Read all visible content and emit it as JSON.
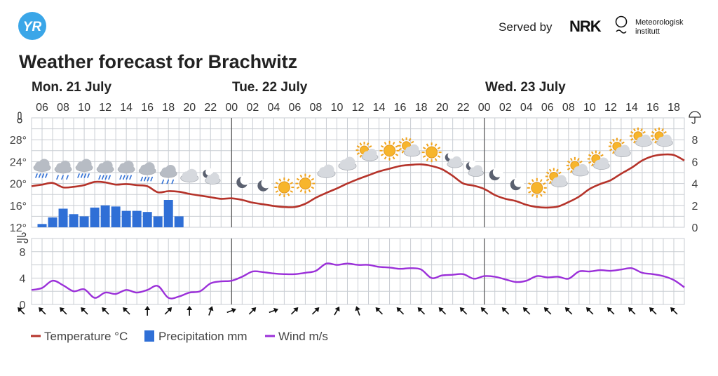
{
  "header": {
    "logo_text": "YR",
    "served_by": "Served by",
    "nrk_logo": "NRK",
    "met_line1": "Meteorologisk",
    "met_line2": "institutt"
  },
  "title": "Weather forecast for Brachwitz",
  "days": [
    "Mon. 21 July",
    "Tue. 22 July",
    "Wed. 23 July"
  ],
  "legend": {
    "temperature": "Temperature °C",
    "precipitation": "Precipitation mm",
    "wind": "Wind m/s"
  },
  "colors": {
    "temperature": "#b5332a",
    "precipitation": "#2f6fd6",
    "wind": "#9b30d9",
    "grid": "#c9cdd3",
    "brand": "#3aa6e8"
  },
  "chart_data": [
    {
      "type": "line",
      "title": "",
      "x_hours": [
        5,
        6,
        7,
        8,
        9,
        10,
        11,
        12,
        13,
        14,
        15,
        16,
        17,
        18,
        19,
        20,
        21,
        22,
        23,
        24,
        25,
        26,
        27,
        28,
        29,
        30,
        31,
        32,
        33,
        34,
        35,
        36,
        37,
        38,
        39,
        40,
        41,
        42,
        43,
        44,
        45,
        46,
        47,
        48,
        49,
        50,
        51,
        52,
        53,
        54,
        55,
        56,
        57,
        58,
        59,
        60,
        61,
        62,
        63,
        64,
        65,
        66,
        67
      ],
      "x_tick_labels": [
        "06",
        "08",
        "10",
        "12",
        "14",
        "16",
        "18",
        "20",
        "22",
        "00",
        "02",
        "04",
        "06",
        "08",
        "10",
        "12",
        "14",
        "16",
        "18",
        "20",
        "22",
        "00",
        "02",
        "04",
        "06",
        "08",
        "10",
        "12",
        "14",
        "16",
        "18"
      ],
      "series": [
        {
          "name": "Temperature °C",
          "values": [
            19.5,
            19.8,
            20.1,
            19.3,
            19.4,
            19.7,
            20.3,
            20.2,
            19.8,
            19.9,
            19.7,
            19.5,
            18.4,
            18.6,
            18.5,
            18.1,
            17.8,
            17.5,
            17.2,
            17.3,
            17.0,
            16.5,
            16.2,
            15.9,
            15.7,
            15.7,
            16.3,
            17.4,
            18.3,
            19.1,
            20.0,
            20.8,
            21.5,
            22.2,
            22.7,
            23.2,
            23.4,
            23.5,
            23.2,
            22.6,
            21.4,
            20.0,
            19.6,
            19.0,
            17.9,
            17.2,
            16.8,
            16.1,
            15.7,
            15.6,
            15.8,
            16.6,
            17.6,
            19.0,
            19.9,
            20.6,
            21.8,
            22.9,
            24.2,
            25.0,
            25.3,
            25.2,
            24.2
          ]
        }
      ],
      "y_left_label": "°C",
      "ylim": [
        12,
        32
      ],
      "y_ticks": [
        12,
        16,
        20,
        24,
        28
      ]
    },
    {
      "type": "bar",
      "x_hours": [
        6,
        7,
        8,
        9,
        10,
        11,
        12,
        13,
        14,
        15,
        16,
        17,
        18,
        19
      ],
      "series": [
        {
          "name": "Precipitation mm",
          "values": [
            0.3,
            0.9,
            1.7,
            1.2,
            1.0,
            1.8,
            2.0,
            1.9,
            1.5,
            1.5,
            1.4,
            1.0,
            2.5,
            1.0
          ]
        }
      ],
      "y_right_ticks": [
        0,
        2,
        4,
        6,
        8
      ],
      "ylim": [
        0,
        10
      ]
    },
    {
      "type": "line",
      "x_hours": [
        5,
        6,
        7,
        8,
        9,
        10,
        11,
        12,
        13,
        14,
        15,
        16,
        17,
        18,
        19,
        20,
        21,
        22,
        23,
        24,
        25,
        26,
        27,
        28,
        29,
        30,
        31,
        32,
        33,
        34,
        35,
        36,
        37,
        38,
        39,
        40,
        41,
        42,
        43,
        44,
        45,
        46,
        47,
        48,
        49,
        50,
        51,
        52,
        53,
        54,
        55,
        56,
        57,
        58,
        59,
        60,
        61,
        62,
        63,
        64,
        65,
        66,
        67
      ],
      "series": [
        {
          "name": "Wind m/s",
          "values": [
            2.2,
            2.5,
            3.6,
            2.9,
            2.0,
            2.3,
            1.0,
            1.8,
            1.6,
            2.2,
            1.8,
            2.2,
            2.8,
            1.0,
            1.2,
            1.8,
            2.0,
            3.2,
            3.5,
            3.6,
            4.2,
            5.0,
            4.9,
            4.7,
            4.6,
            4.6,
            4.8,
            5.1,
            6.2,
            6.0,
            6.2,
            6.0,
            6.0,
            5.7,
            5.6,
            5.4,
            5.5,
            5.3,
            4.0,
            4.4,
            4.5,
            4.6,
            3.9,
            4.3,
            4.2,
            3.8,
            3.4,
            3.6,
            4.3,
            4.1,
            4.2,
            3.9,
            5.0,
            5.0,
            5.2,
            5.1,
            5.3,
            5.5,
            4.8,
            4.6,
            4.3,
            3.7,
            2.6
          ]
        }
      ],
      "ylim": [
        0,
        10
      ],
      "y_ticks": [
        0,
        4,
        8
      ]
    }
  ],
  "left_numbers": [
    "28°",
    "24°",
    "20°",
    "16°",
    "12°"
  ],
  "right_numbers": [
    "8",
    "6",
    "4",
    "2",
    "0"
  ],
  "wind_numbers": [
    "8",
    "4",
    "0"
  ],
  "icons": [
    {
      "hour": 6,
      "temp": 22.9,
      "type": "heavy-rain-icon"
    },
    {
      "hour": 8,
      "temp": 22.6,
      "type": "rain-icon"
    },
    {
      "hour": 10,
      "temp": 22.9,
      "type": "heavy-rain-icon"
    },
    {
      "hour": 12,
      "temp": 22.6,
      "type": "heavy-rain-icon"
    },
    {
      "hour": 14,
      "temp": 22.6,
      "type": "heavy-rain-icon"
    },
    {
      "hour": 16,
      "temp": 22.3,
      "type": "heavy-rain-icon"
    },
    {
      "hour": 18,
      "temp": 21.8,
      "type": "rain-icon"
    },
    {
      "hour": 20,
      "temp": 21.4,
      "type": "cloud-icon"
    },
    {
      "hour": 22,
      "temp": 21.0,
      "type": "partly-cloudy-night-icon"
    },
    {
      "hour": 25,
      "temp": 20.2,
      "type": "moon-icon"
    },
    {
      "hour": 27,
      "temp": 19.6,
      "type": "moon-icon"
    },
    {
      "hour": 29,
      "temp": 19.3,
      "type": "sun-icon"
    },
    {
      "hour": 31,
      "temp": 20.0,
      "type": "sun-icon"
    },
    {
      "hour": 33,
      "temp": 22.2,
      "type": "cloud-icon"
    },
    {
      "hour": 35,
      "temp": 23.6,
      "type": "cloud-icon"
    },
    {
      "hour": 37,
      "temp": 25.2,
      "type": "partly-cloudy-icon"
    },
    {
      "hour": 39,
      "temp": 26.0,
      "type": "sun-icon"
    },
    {
      "hour": 41,
      "temp": 26.0,
      "type": "partly-cloudy-icon"
    },
    {
      "hour": 43,
      "temp": 25.7,
      "type": "sun-icon"
    },
    {
      "hour": 45,
      "temp": 24.0,
      "type": "partly-cloudy-night-icon"
    },
    {
      "hour": 47,
      "temp": 22.4,
      "type": "partly-cloudy-night-icon"
    },
    {
      "hour": 49,
      "temp": 21.6,
      "type": "moon-icon"
    },
    {
      "hour": 51,
      "temp": 19.8,
      "type": "moon-icon"
    },
    {
      "hour": 53,
      "temp": 19.2,
      "type": "sun-icon"
    },
    {
      "hour": 55,
      "temp": 20.4,
      "type": "partly-cloudy-icon"
    },
    {
      "hour": 57,
      "temp": 22.4,
      "type": "partly-cloudy-icon"
    },
    {
      "hour": 59,
      "temp": 23.6,
      "type": "partly-cloudy-icon"
    },
    {
      "hour": 61,
      "temp": 25.9,
      "type": "partly-cloudy-icon"
    },
    {
      "hour": 63,
      "temp": 27.8,
      "type": "partly-cloudy-icon"
    },
    {
      "hour": 65,
      "temp": 27.8,
      "type": "partly-cloudy-icon"
    }
  ],
  "wind_arrows_deg": [
    225,
    225,
    225,
    225,
    225,
    225,
    270,
    315,
    270,
    290,
    340,
    315,
    340,
    315,
    315,
    300,
    250,
    225,
    225,
    225,
    225,
    225,
    225,
    225,
    225,
    225,
    225,
    225,
    225,
    225,
    225,
    225
  ]
}
